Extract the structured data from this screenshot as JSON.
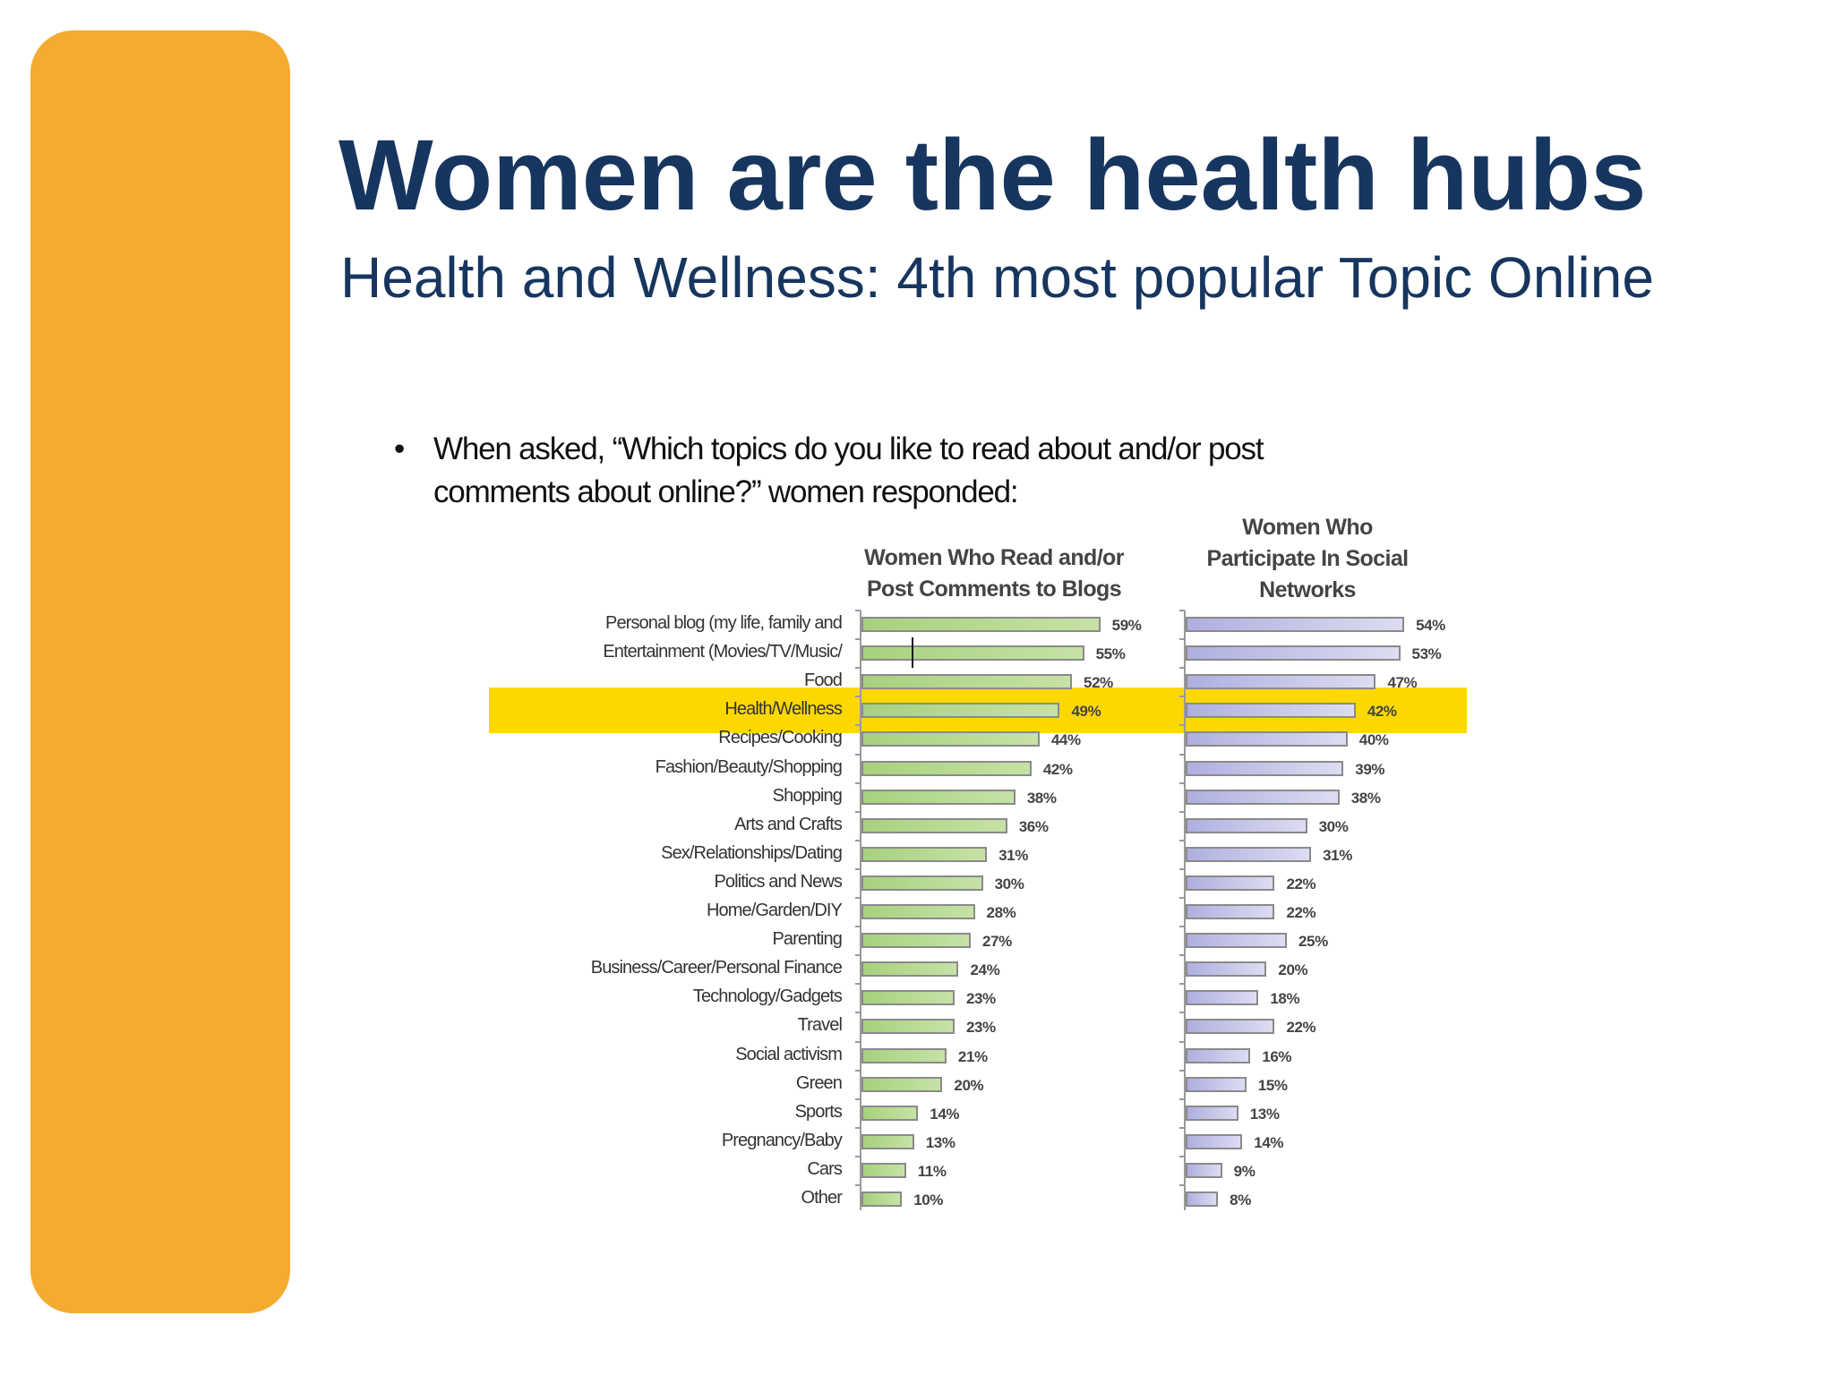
{
  "slide": {
    "title": "Women are the health hubs",
    "subtitle": "Health and Wellness: 4th most popular Topic Online",
    "bullet": "•",
    "question_line1": "When asked, “Which topics do you like to read about and/or post",
    "question_line2": "comments about online?” women responded:",
    "colors": {
      "accent_bar": "#F5AB30",
      "title": "#17365F",
      "highlight": "#FDD800",
      "blog_bars": "#A7D17E",
      "social_bars": "#AFAFE0"
    }
  },
  "chart_data": {
    "type": "bar",
    "orientation": "horizontal",
    "title": "Which topics do you like to read about and/or post comments about online?",
    "categories": [
      "Personal blog (my life, family and",
      "Entertainment (Movies/TV/Music/",
      "Food",
      "Health/Wellness",
      "Recipes/Cooking",
      "Fashion/Beauty/Shopping",
      "Shopping",
      "Arts and Crafts",
      "Sex/Relationships/Dating",
      "Politics and News",
      "Home/Garden/DIY",
      "Parenting",
      "Business/Career/Personal Finance",
      "Technology/Gadgets",
      "Travel",
      "Social activism",
      "Green",
      "Sports",
      "Pregnancy/Baby",
      "Cars",
      "Other"
    ],
    "series": [
      {
        "name": "Women Who Read and/or Post Comments to Blogs",
        "header_line1": "Women Who Read and/or",
        "header_line2": "Post Comments to Blogs",
        "values": [
          59,
          55,
          52,
          49,
          44,
          42,
          38,
          36,
          31,
          30,
          28,
          27,
          24,
          23,
          23,
          21,
          20,
          14,
          13,
          11,
          10
        ],
        "labels": [
          "59%",
          "55%",
          "52%",
          "49%",
          "44%",
          "42%",
          "38%",
          "36%",
          "31%",
          "30%",
          "28%",
          "27%",
          "24%",
          "23%",
          "23%",
          "21%",
          "20%",
          "14%",
          "13%",
          "11%",
          "10%"
        ]
      },
      {
        "name": "Women Who Participate In Social Networks",
        "header_line1": "Women Who",
        "header_line2": "Participate In Social",
        "header_line3": "Networks",
        "values": [
          54,
          53,
          47,
          42,
          40,
          39,
          38,
          30,
          31,
          22,
          22,
          25,
          20,
          18,
          22,
          16,
          15,
          13,
          14,
          9,
          8
        ],
        "labels": [
          "54%",
          "53%",
          "47%",
          "42%",
          "40%",
          "39%",
          "38%",
          "30%",
          "31%",
          "22%",
          "22%",
          "25%",
          "20%",
          "18%",
          "22%",
          "16%",
          "15%",
          "13%",
          "14%",
          "9%",
          "8%"
        ]
      }
    ],
    "highlighted_category": "Health/Wellness",
    "xlabel": "",
    "ylabel": "",
    "xlim": [
      0,
      100
    ],
    "grid": false,
    "legend": "column headers above each panel",
    "unit": "%"
  }
}
